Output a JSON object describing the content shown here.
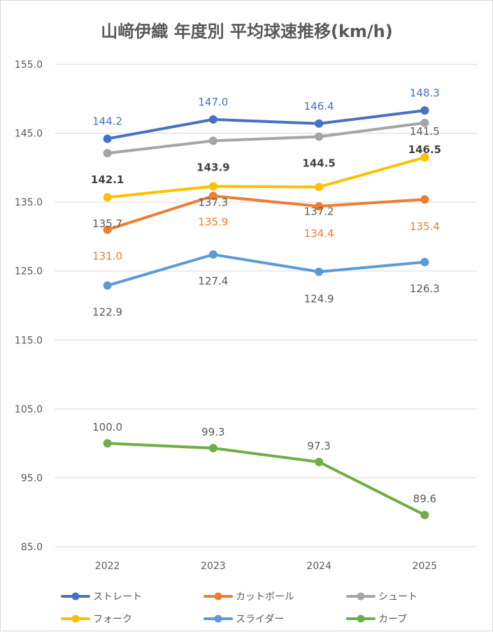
{
  "chart_data": {
    "type": "line",
    "title": "山﨑伊織 年度別 平均球速推移(km/h)",
    "xlabel": "",
    "ylabel": "",
    "categories": [
      "2022",
      "2023",
      "2024",
      "2025"
    ],
    "ylim": [
      85.0,
      155.0
    ],
    "yticks": [
      "85.0",
      "95.0",
      "105.0",
      "115.0",
      "125.0",
      "135.0",
      "145.0",
      "155.0"
    ],
    "grid": true,
    "legend_position": "bottom",
    "series": [
      {
        "name": "ストレート",
        "color": "#4472c4",
        "values": [
          144.2,
          147.0,
          146.4,
          148.3
        ],
        "labels": [
          "144.2",
          "147.0",
          "146.4",
          "148.3"
        ]
      },
      {
        "name": "カットボール",
        "color": "#ed7d31",
        "values": [
          131.0,
          135.9,
          134.4,
          135.4
        ],
        "labels": [
          "131.0",
          "135.9",
          "134.4",
          "135.4"
        ]
      },
      {
        "name": "シュート",
        "color": "#a5a5a5",
        "values": [
          142.1,
          143.9,
          144.5,
          146.5
        ],
        "labels": [
          "142.1",
          "143.9",
          "144.5",
          "146.5"
        ]
      },
      {
        "name": "フォーク",
        "color": "#ffc000",
        "values": [
          135.7,
          137.3,
          137.2,
          141.5
        ],
        "labels": [
          "135.7",
          "137.3",
          "137.2",
          "141.5"
        ]
      },
      {
        "name": "スライダー",
        "color": "#5b9bd5",
        "values": [
          122.9,
          127.4,
          124.9,
          126.3
        ],
        "labels": [
          "122.9",
          "127.4",
          "124.9",
          "126.3"
        ]
      },
      {
        "name": "カーブ",
        "color": "#70ad47",
        "values": [
          100.0,
          99.3,
          97.3,
          89.6
        ],
        "labels": [
          "100.0",
          "99.3",
          "97.3",
          "89.6"
        ]
      }
    ]
  }
}
